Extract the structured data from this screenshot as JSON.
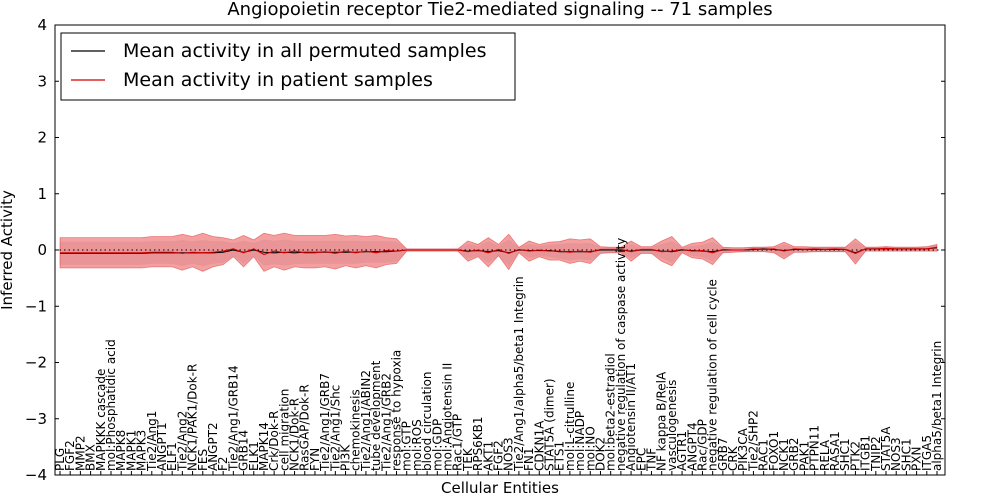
{
  "colors": {
    "patient": "#d40000",
    "patient_band": "#f08080",
    "permuted": "#000000",
    "permuted_band": "#b8b8c8",
    "axes": "#000000",
    "background": "#ffffff"
  },
  "chart_data": {
    "type": "line",
    "title": "Angiopoietin receptor Tie2-mediated signaling -- 71 samples",
    "xlabel": "Cellular Entities",
    "ylabel": "Inferred Activity",
    "ylim": [
      -4,
      4
    ],
    "yticks": [
      {
        "value": -4,
        "label": "−4"
      },
      {
        "value": -3,
        "label": "−3"
      },
      {
        "value": -2,
        "label": "−2"
      },
      {
        "value": -1,
        "label": "−1"
      },
      {
        "value": 0,
        "label": "0"
      },
      {
        "value": 1,
        "label": "1"
      },
      {
        "value": 2,
        "label": "2"
      },
      {
        "value": 3,
        "label": "3"
      },
      {
        "value": 4,
        "label": "4"
      }
    ],
    "grid": false,
    "zero_reference_line": true,
    "legend_position": "top-left",
    "categories": [
      "PLG",
      "FGF2",
      "MMP2",
      "BMX",
      "MAPKKK cascade",
      "mol:Phosphatidic acid",
      "MAPK8",
      "MAPK1",
      "MAPK3",
      "Tie2/Ang1",
      "ANGPT1",
      "ELF1",
      "Tie2/Ang2",
      "NCK1/PAK1/Dok-R",
      "FES",
      "ANGPT2",
      "F2",
      "Tie2/Ang1/GRB14",
      "GRB14",
      "ELK1",
      "MAPK14",
      "Crk/Dok-R",
      "cell migration",
      "NCK1/Dok-R",
      "RasGAP/Dok-R",
      "FYN",
      "Tie2/Ang1/GRB7",
      "Tie2/Ang1/Shc",
      "PI3K",
      "chemokinesis",
      "Tie2/Ang1/ABIN2",
      "tube development",
      "Tie2/Ang1/GRB2",
      "response to hypoxia",
      "mol:GTP",
      "mol:ROS",
      "blood circulation",
      "mol:GDP",
      "mol:Angiotensin II",
      "Rac1/GTP",
      "TEK",
      "RPS6KB1",
      "AKT1",
      "FGF2",
      "NOS3",
      "Tie2/Ang1/alpha5/beta1 Integrin",
      "FN1",
      "CDKN1A",
      "STAT5A (dimer)",
      "ETS1",
      "mol:L-citrulline",
      "mol:NADP",
      "mol:NO",
      "DOK2",
      "mol:beta2-estradiol",
      "negative regulation of caspase activity",
      "Angiotensin II/AT1",
      "EPC",
      "TNF",
      "NF kappa B/RelA",
      "vasculogenesis",
      "AGTR1",
      "ANGPT4",
      "Rac/GDP",
      "negative regulation of cell cycle",
      "GRB7",
      "CRK",
      "PIK3CA",
      "Tie2/SHP2",
      "RAC1",
      "FOXO1",
      "NCK1",
      "GRB2",
      "PAK1",
      "PTPN11",
      "RELA",
      "RASA1",
      "SHC1",
      "PTK2",
      "ITGB1",
      "TNIP2",
      "STAT5A",
      "NOS3",
      "SHC1",
      "PXN",
      "ITGA5",
      "alpha5/beta1 Integrin"
    ],
    "series": [
      {
        "name": "Mean activity in all permuted samples",
        "values": [
          -0.06,
          -0.06,
          -0.06,
          -0.06,
          -0.06,
          -0.06,
          -0.06,
          -0.06,
          -0.06,
          -0.05,
          -0.05,
          -0.05,
          -0.05,
          -0.05,
          -0.05,
          -0.05,
          -0.04,
          0.0,
          -0.04,
          0.0,
          -0.04,
          -0.05,
          -0.04,
          -0.05,
          -0.04,
          -0.04,
          -0.04,
          -0.04,
          -0.04,
          -0.04,
          -0.03,
          -0.03,
          -0.03,
          -0.02,
          0.0,
          0.0,
          0.0,
          0.0,
          0.0,
          0.0,
          -0.02,
          -0.01,
          -0.03,
          -0.01,
          -0.05,
          0.0,
          -0.01,
          -0.01,
          -0.01,
          -0.03,
          -0.03,
          -0.03,
          -0.03,
          0.0,
          0.0,
          0.0,
          -0.02,
          0.0,
          0.0,
          -0.02,
          -0.03,
          0.0,
          -0.01,
          -0.02,
          -0.03,
          0.0,
          0.0,
          0.0,
          0.01,
          0.02,
          0.01,
          -0.01,
          0.01,
          0.01,
          0.01,
          0.01,
          0.01,
          0.01,
          -0.05,
          0.02,
          0.02,
          0.02,
          0.02,
          0.02,
          0.02,
          0.02,
          0.04
        ]
      },
      {
        "name": "Mean activity in patient samples",
        "values": [
          -0.05,
          -0.05,
          -0.05,
          -0.05,
          -0.05,
          -0.05,
          -0.05,
          -0.05,
          -0.05,
          -0.04,
          -0.04,
          -0.04,
          -0.06,
          -0.04,
          -0.05,
          -0.04,
          -0.02,
          0.02,
          -0.05,
          0.02,
          -0.08,
          -0.02,
          -0.05,
          -0.02,
          -0.05,
          -0.05,
          -0.03,
          -0.06,
          -0.02,
          -0.05,
          -0.02,
          -0.05,
          -0.01,
          -0.02,
          0.0,
          0.0,
          0.0,
          0.0,
          0.0,
          0.0,
          -0.03,
          0.0,
          -0.05,
          0.01,
          -0.06,
          0.01,
          -0.02,
          0.0,
          -0.02,
          -0.02,
          -0.04,
          -0.02,
          -0.04,
          0.01,
          0.01,
          0.01,
          -0.03,
          0.01,
          0.01,
          -0.03,
          -0.02,
          0.01,
          -0.02,
          -0.01,
          -0.05,
          0.01,
          0.0,
          0.0,
          0.02,
          0.01,
          0.02,
          -0.02,
          0.02,
          0.01,
          0.02,
          0.01,
          0.02,
          0.01,
          -0.06,
          0.02,
          0.02,
          0.03,
          0.02,
          0.02,
          0.02,
          0.02,
          0.05
        ]
      }
    ],
    "bands": [
      {
        "name": "permuted spread",
        "lower": [
          -0.26,
          -0.26,
          -0.26,
          -0.26,
          -0.26,
          -0.26,
          -0.26,
          -0.26,
          -0.26,
          -0.24,
          -0.24,
          -0.24,
          -0.28,
          -0.24,
          -0.28,
          -0.24,
          -0.22,
          -0.1,
          -0.24,
          -0.1,
          -0.27,
          -0.25,
          -0.27,
          -0.25,
          -0.24,
          -0.24,
          -0.24,
          -0.24,
          -0.24,
          -0.24,
          -0.22,
          -0.22,
          -0.22,
          -0.2,
          -0.02,
          -0.02,
          -0.02,
          -0.02,
          -0.02,
          -0.02,
          -0.15,
          -0.1,
          -0.22,
          -0.1,
          -0.28,
          -0.04,
          -0.14,
          -0.1,
          -0.12,
          -0.15,
          -0.18,
          -0.16,
          -0.18,
          -0.06,
          -0.04,
          -0.04,
          -0.14,
          -0.06,
          -0.06,
          -0.14,
          -0.22,
          -0.04,
          -0.1,
          -0.12,
          -0.2,
          -0.04,
          -0.04,
          -0.03,
          -0.02,
          -0.02,
          -0.04,
          -0.12,
          -0.04,
          -0.04,
          -0.03,
          -0.03,
          -0.03,
          -0.03,
          -0.2,
          -0.02,
          -0.02,
          -0.02,
          -0.02,
          -0.02,
          -0.02,
          -0.02,
          -0.02
        ],
        "upper": [
          0.14,
          0.14,
          0.14,
          0.14,
          0.14,
          0.14,
          0.14,
          0.14,
          0.14,
          0.15,
          0.15,
          0.15,
          0.17,
          0.15,
          0.17,
          0.15,
          0.15,
          0.12,
          0.16,
          0.12,
          0.18,
          0.16,
          0.18,
          0.16,
          0.16,
          0.16,
          0.16,
          0.16,
          0.16,
          0.16,
          0.15,
          0.15,
          0.15,
          0.14,
          0.02,
          0.02,
          0.02,
          0.02,
          0.02,
          0.02,
          0.1,
          0.07,
          0.15,
          0.07,
          0.18,
          0.04,
          0.1,
          0.07,
          0.09,
          0.1,
          0.12,
          0.11,
          0.12,
          0.05,
          0.04,
          0.04,
          0.1,
          0.05,
          0.05,
          0.1,
          0.15,
          0.04,
          0.07,
          0.09,
          0.14,
          0.04,
          0.04,
          0.04,
          0.05,
          0.05,
          0.05,
          0.09,
          0.05,
          0.05,
          0.05,
          0.05,
          0.05,
          0.05,
          0.14,
          0.05,
          0.05,
          0.06,
          0.05,
          0.05,
          0.05,
          0.06,
          0.08
        ]
      },
      {
        "name": "patient spread",
        "lower": [
          -0.32,
          -0.32,
          -0.32,
          -0.32,
          -0.32,
          -0.32,
          -0.32,
          -0.32,
          -0.32,
          -0.3,
          -0.3,
          -0.3,
          -0.36,
          -0.3,
          -0.38,
          -0.3,
          -0.26,
          -0.12,
          -0.3,
          -0.12,
          -0.38,
          -0.3,
          -0.36,
          -0.3,
          -0.32,
          -0.32,
          -0.3,
          -0.34,
          -0.28,
          -0.32,
          -0.28,
          -0.32,
          -0.26,
          -0.24,
          -0.02,
          -0.02,
          -0.02,
          -0.02,
          -0.02,
          -0.02,
          -0.2,
          -0.12,
          -0.3,
          -0.1,
          -0.35,
          -0.05,
          -0.2,
          -0.12,
          -0.18,
          -0.18,
          -0.24,
          -0.2,
          -0.24,
          -0.06,
          -0.05,
          -0.05,
          -0.2,
          -0.06,
          -0.06,
          -0.2,
          -0.28,
          -0.05,
          -0.14,
          -0.16,
          -0.26,
          -0.05,
          -0.04,
          -0.03,
          -0.03,
          -0.03,
          -0.05,
          -0.16,
          -0.04,
          -0.04,
          -0.03,
          -0.03,
          -0.03,
          -0.03,
          -0.25,
          -0.02,
          -0.02,
          -0.02,
          -0.02,
          -0.02,
          -0.02,
          -0.02,
          -0.02
        ],
        "upper": [
          0.22,
          0.22,
          0.22,
          0.22,
          0.22,
          0.22,
          0.22,
          0.22,
          0.22,
          0.24,
          0.24,
          0.24,
          0.28,
          0.24,
          0.3,
          0.24,
          0.22,
          0.18,
          0.26,
          0.18,
          0.3,
          0.26,
          0.3,
          0.26,
          0.26,
          0.26,
          0.26,
          0.28,
          0.25,
          0.26,
          0.24,
          0.26,
          0.22,
          0.2,
          0.02,
          0.02,
          0.02,
          0.02,
          0.02,
          0.02,
          0.16,
          0.1,
          0.22,
          0.1,
          0.28,
          0.05,
          0.16,
          0.1,
          0.14,
          0.15,
          0.2,
          0.18,
          0.2,
          0.06,
          0.05,
          0.05,
          0.16,
          0.06,
          0.06,
          0.16,
          0.24,
          0.05,
          0.12,
          0.14,
          0.22,
          0.05,
          0.04,
          0.04,
          0.05,
          0.05,
          0.06,
          0.14,
          0.06,
          0.06,
          0.05,
          0.05,
          0.05,
          0.05,
          0.2,
          0.05,
          0.05,
          0.06,
          0.05,
          0.05,
          0.05,
          0.06,
          0.1
        ]
      }
    ]
  }
}
